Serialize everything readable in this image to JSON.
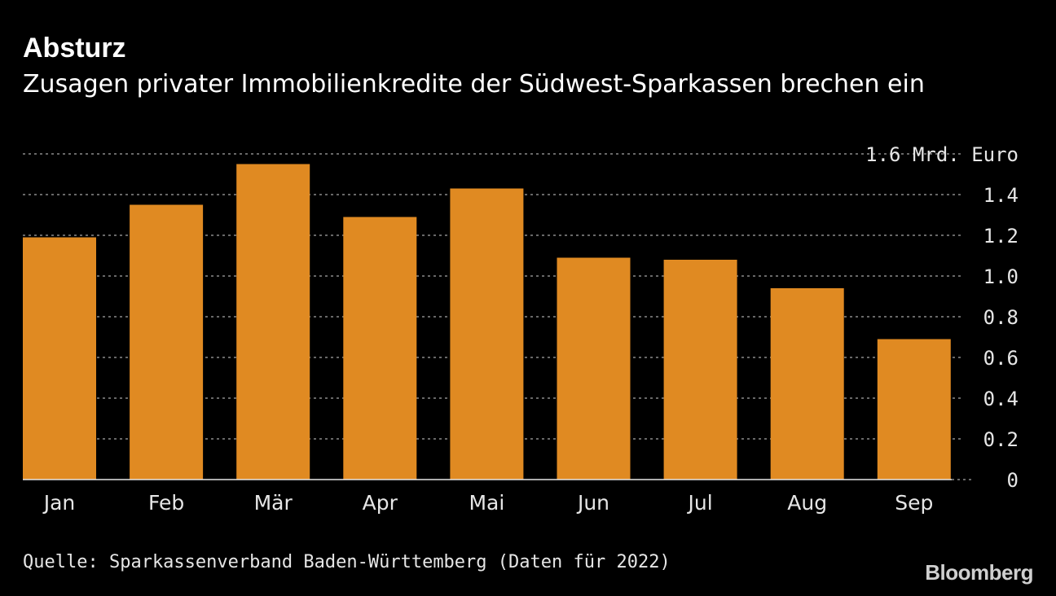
{
  "chart_data": {
    "type": "bar",
    "title": "Absturz",
    "subtitle": "Zusagen privater Immobilienkredite der Südwest-Sparkassen brechen ein",
    "unit": "Mrd. Euro",
    "categories": [
      "Jan",
      "Feb",
      "Mär",
      "Apr",
      "Mai",
      "Jun",
      "Jul",
      "Aug",
      "Sep"
    ],
    "values": [
      1.19,
      1.35,
      1.55,
      1.29,
      1.43,
      1.09,
      1.08,
      0.94,
      0.69
    ],
    "ylim": [
      0,
      1.6
    ],
    "yticks": [
      {
        "value": 0,
        "label": "0"
      },
      {
        "value": 0.2,
        "label": "0.2"
      },
      {
        "value": 0.4,
        "label": "0.4"
      },
      {
        "value": 0.6,
        "label": "0.6"
      },
      {
        "value": 0.8,
        "label": "0.8"
      },
      {
        "value": 1.0,
        "label": "1.0"
      },
      {
        "value": 1.2,
        "label": "1.2"
      },
      {
        "value": 1.4,
        "label": "1.4"
      },
      {
        "value": 1.6,
        "label": "1.6 Mrd. Euro"
      }
    ],
    "bar_color": "#e08a22",
    "grid": true,
    "y_axis_position": "right"
  },
  "source": "Quelle: Sparkassenverband Baden-Württemberg (Daten für 2022)",
  "brand": "Bloomberg"
}
